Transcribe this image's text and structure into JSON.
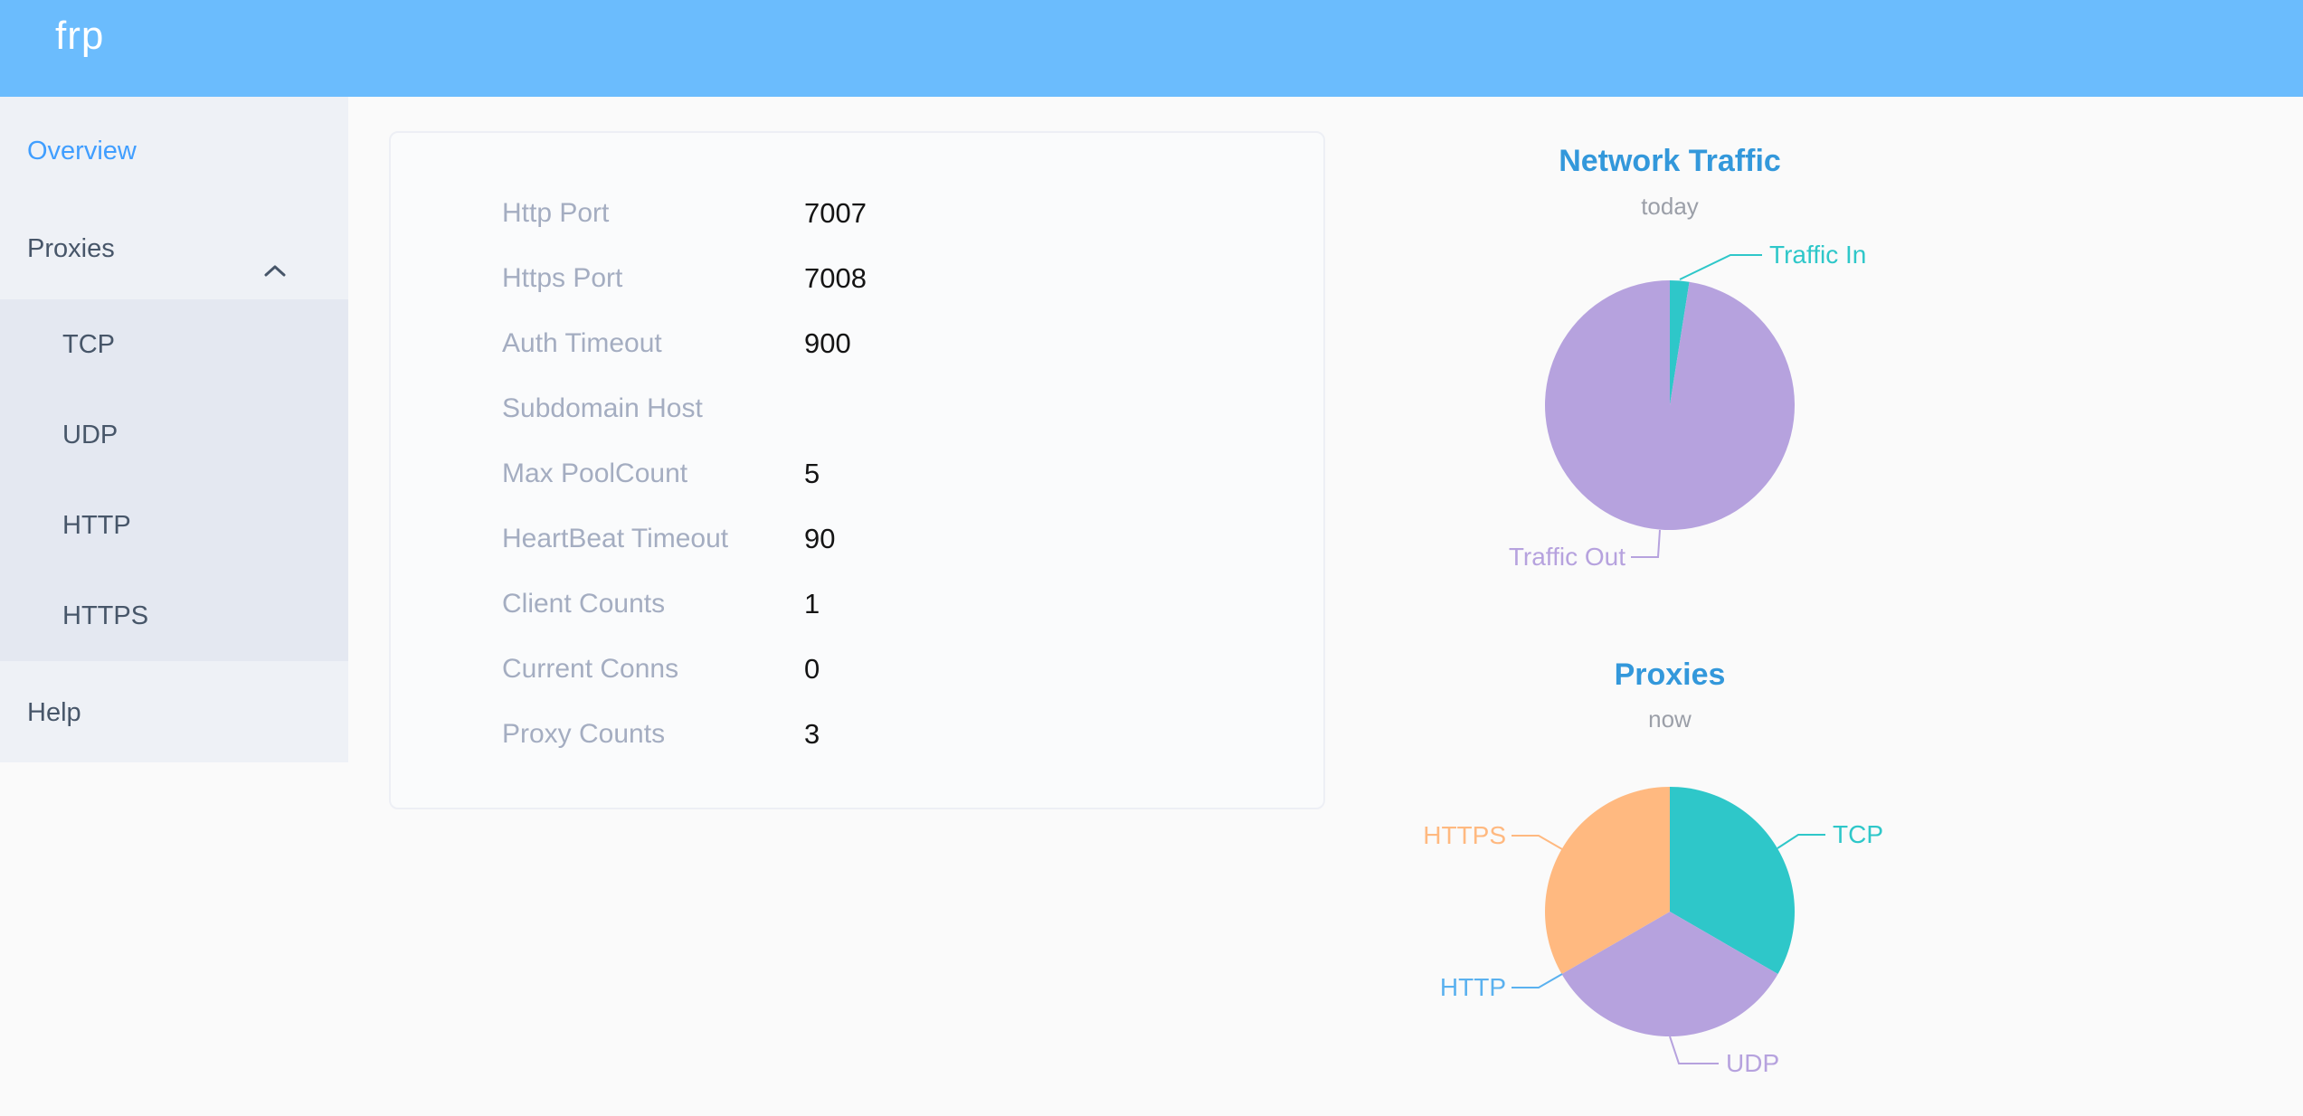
{
  "header": {
    "logo": "frp",
    "background": "#6bbcfd"
  },
  "sidebar": {
    "overview_label": "Overview",
    "proxies_label": "Proxies",
    "help_label": "Help",
    "submenu": [
      "TCP",
      "UDP",
      "HTTP",
      "HTTPS"
    ],
    "active_item": "Overview",
    "active_color": "#409eff"
  },
  "card": {
    "rows": [
      {
        "label": "Http Port",
        "value": "7007"
      },
      {
        "label": "Https Port",
        "value": "7008"
      },
      {
        "label": "Auth Timeout",
        "value": "900"
      },
      {
        "label": "Subdomain Host",
        "value": ""
      },
      {
        "label": "Max PoolCount",
        "value": "5"
      },
      {
        "label": "HeartBeat Timeout",
        "value": "90"
      },
      {
        "label": "Client Counts",
        "value": "1"
      },
      {
        "label": "Current Conns",
        "value": "0"
      },
      {
        "label": "Proxy Counts",
        "value": "3"
      }
    ]
  },
  "chart_data": [
    {
      "type": "pie",
      "title": "Network Traffic",
      "subtitle": "today",
      "legend_position": "outside-callout-labels",
      "series": [
        {
          "name": "Traffic In",
          "value": 2.5,
          "color": "#2ec7c9"
        },
        {
          "name": "Traffic Out",
          "value": 97.5,
          "color": "#b6a2de"
        }
      ]
    },
    {
      "type": "pie",
      "title": "Proxies",
      "subtitle": "now",
      "legend_position": "outside-callout-labels",
      "series": [
        {
          "name": "TCP",
          "value": 1,
          "color": "#2ec7c9"
        },
        {
          "name": "UDP",
          "value": 1,
          "color": "#b6a2de"
        },
        {
          "name": "HTTP",
          "value": 0,
          "color": "#5ab1ef"
        },
        {
          "name": "HTTPS",
          "value": 1,
          "color": "#ffb980"
        }
      ]
    }
  ],
  "colors": {
    "title_blue": "#3398db",
    "sidebar_bg": "#eef1f6",
    "submenu_bg": "#e4e8f1",
    "page_bg": "#fafafa"
  }
}
